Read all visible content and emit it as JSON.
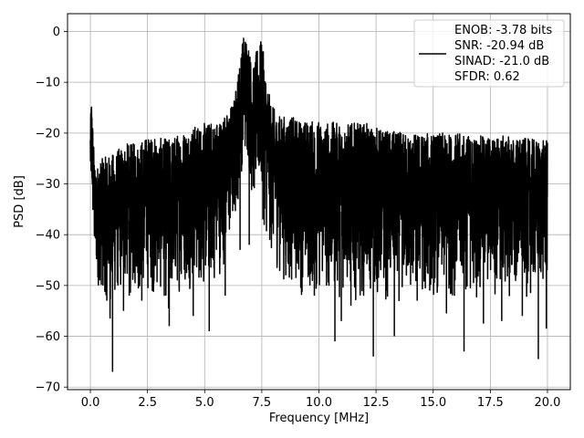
{
  "chart_data": {
    "type": "line",
    "xlabel": "Frequency [MHz]",
    "ylabel": "PSD [dB]",
    "xlim": [
      -1.0,
      21.0
    ],
    "ylim": [
      -70.5,
      3.5
    ],
    "x_ticks": [
      0.0,
      2.5,
      5.0,
      7.5,
      10.0,
      12.5,
      15.0,
      17.5,
      20.0
    ],
    "x_tick_labels": [
      "0.0",
      "2.5",
      "5.0",
      "7.5",
      "10.0",
      "12.5",
      "15.0",
      "17.5",
      "20.0"
    ],
    "y_ticks": [
      0,
      -10,
      -20,
      -30,
      -40,
      -50,
      -60,
      -70
    ],
    "y_tick_labels": [
      "0",
      "−10",
      "−20",
      "−30",
      "−40",
      "−50",
      "−60",
      "−70"
    ],
    "grid": true,
    "legend_placement": "top-right",
    "series": [
      {
        "color": "#000000",
        "legend_lines": [
          "ENOB: -3.78 bits",
          "SNR: -20.94 dB",
          "SINAD: -21.0 dB",
          "SFDR: 0.62"
        ],
        "envelope": {
          "x": [
            0.0,
            0.05,
            0.2,
            0.5,
            1.0,
            1.5,
            2.0,
            2.5,
            3.0,
            3.5,
            4.0,
            4.5,
            5.0,
            5.5,
            6.0,
            6.3,
            6.5,
            6.7,
            6.9,
            7.1,
            7.3,
            7.5,
            7.7,
            7.9,
            8.2,
            8.5,
            9.0,
            9.5,
            10.0,
            11.0,
            12.0,
            13.0,
            14.0,
            15.0,
            16.0,
            17.0,
            18.0,
            19.0,
            20.0
          ],
          "high": [
            -18.0,
            -12.5,
            -27.0,
            -25.0,
            -24.0,
            -22.0,
            -22.0,
            -20.5,
            -21.0,
            -21.0,
            -19.5,
            -18.5,
            -18.0,
            -17.5,
            -16.0,
            -13.0,
            -7.0,
            -0.5,
            -1.5,
            -8.0,
            -3.0,
            -1.5,
            -9.0,
            -14.0,
            -16.5,
            -16.5,
            -17.0,
            -17.5,
            -17.5,
            -18.0,
            -18.0,
            -19.5,
            -20.0,
            -20.0,
            -20.0,
            -20.5,
            -20.5,
            -21.0,
            -21.5
          ],
          "low": [
            -33.0,
            -35.0,
            -50.0,
            -52.0,
            -55.0,
            -52.0,
            -53.0,
            -52.0,
            -53.0,
            -55.0,
            -51.0,
            -51.0,
            -52.0,
            -50.0,
            -45.0,
            -40.0,
            -33.0,
            -25.0,
            -27.0,
            -35.0,
            -33.0,
            -35.0,
            -42.0,
            -45.0,
            -48.0,
            -50.0,
            -52.0,
            -53.0,
            -53.0,
            -53.0,
            -53.0,
            -54.0,
            -54.0,
            -53.0,
            -53.0,
            -53.0,
            -53.0,
            -53.0,
            -52.0
          ]
        },
        "spikes": [
          [
            0.55,
            -50.0
          ],
          [
            0.72,
            -53.0
          ],
          [
            0.86,
            -56.5
          ],
          [
            0.97,
            -67.0
          ],
          [
            1.45,
            -55.0
          ],
          [
            1.7,
            -52.0
          ],
          [
            2.25,
            -53.0
          ],
          [
            3.42,
            -54.5
          ],
          [
            3.45,
            -58.0
          ],
          [
            4.5,
            -56.0
          ],
          [
            5.2,
            -59.0
          ],
          [
            5.9,
            -52.0
          ],
          [
            6.55,
            -43.0
          ],
          [
            6.95,
            -42.0
          ],
          [
            7.55,
            -37.0
          ],
          [
            8.55,
            -48.0
          ],
          [
            9.8,
            -52.0
          ],
          [
            10.7,
            -61.0
          ],
          [
            10.98,
            -57.0
          ],
          [
            11.4,
            -54.0
          ],
          [
            12.38,
            -64.0
          ],
          [
            12.95,
            -51.0
          ],
          [
            13.3,
            -60.0
          ],
          [
            14.3,
            -53.0
          ],
          [
            14.85,
            -51.0
          ],
          [
            15.58,
            -55.5
          ],
          [
            16.35,
            -63.0
          ],
          [
            17.2,
            -57.5
          ],
          [
            18.0,
            -57.0
          ],
          [
            18.9,
            -56.0
          ],
          [
            19.6,
            -64.5
          ],
          [
            19.95,
            -58.5
          ]
        ]
      }
    ]
  }
}
